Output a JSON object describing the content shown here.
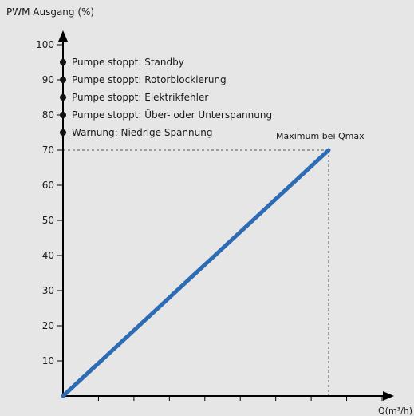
{
  "chart_data": {
    "type": "line",
    "ylabel": "PWM Ausgang (%)",
    "xlabel": "Q(m³/h)",
    "ylim": [
      0,
      100
    ],
    "y_ticks": [
      10,
      20,
      30,
      40,
      50,
      60,
      70,
      80,
      90,
      100
    ],
    "x_tick_count": 9,
    "series": [
      {
        "x": [
          "0",
          "Qmax"
        ],
        "values": [
          0,
          70
        ],
        "color": "#2e6bb5"
      }
    ],
    "max_annotation": {
      "label": "Maximum bei Qmax",
      "y": 70
    },
    "status_markers": [
      {
        "y": 95,
        "label": "Pumpe stoppt: Standby"
      },
      {
        "y": 90,
        "label": "Pumpe stoppt: Rotorblockierung"
      },
      {
        "y": 85,
        "label": "Pumpe stoppt: Elektrikfehler"
      },
      {
        "y": 80,
        "label": "Pumpe stoppt: Über- oder Unterspannung"
      },
      {
        "y": 75,
        "label": "Warnung: Niedrige Spannung"
      }
    ]
  }
}
